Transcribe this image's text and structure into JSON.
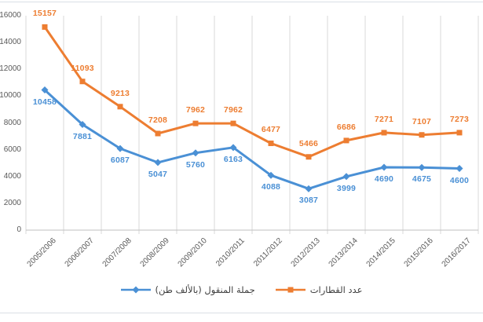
{
  "chart_data": {
    "type": "line",
    "title": "",
    "xlabel": "",
    "ylabel": "",
    "categories": [
      "2005/2006",
      "2006/2007",
      "2007/2008",
      "2008/2009",
      "2009/2010",
      "2010/2011",
      "2011/2012",
      "2012/2013",
      "2013/2014",
      "2014/2015",
      "2015/2016",
      "2016/2017"
    ],
    "series": [
      {
        "name": "عدد القطارات",
        "color": "#ED7D31",
        "marker": "square",
        "label_position": "above",
        "values": [
          15157,
          11093,
          9213,
          7208,
          7962,
          7962,
          6477,
          5466,
          6686,
          7271,
          7107,
          7273
        ]
      },
      {
        "name": "جملة المنقول (بالألف طن)",
        "color": "#4A90D5",
        "marker": "diamond",
        "label_position": "below",
        "values": [
          10458,
          7881,
          6087,
          5047,
          5760,
          6163,
          4088,
          3087,
          3999,
          4690,
          4675,
          4600
        ]
      }
    ],
    "ylim": [
      0,
      16000
    ],
    "ytick_step": 2000,
    "ytick_labels": [
      "0",
      "2000",
      "4000",
      "6000",
      "8000",
      "10000",
      "12000",
      "14000",
      "16000"
    ],
    "grid": "vertical-only",
    "data_labels": true,
    "legend_position": "bottom"
  },
  "legend": {
    "entries": [
      {
        "label": "عدد القطارات",
        "color": "#ED7D31",
        "marker": "square"
      },
      {
        "label": "جملة المنقول (بالألف طن)",
        "color": "#4A90D5",
        "marker": "diamond"
      }
    ]
  },
  "colors": {
    "grid": "#D9D9D9",
    "axis": "#BFBFBF",
    "tick_text": "#595959",
    "frame": "#DADFE5",
    "background": "#FFFFFF"
  }
}
